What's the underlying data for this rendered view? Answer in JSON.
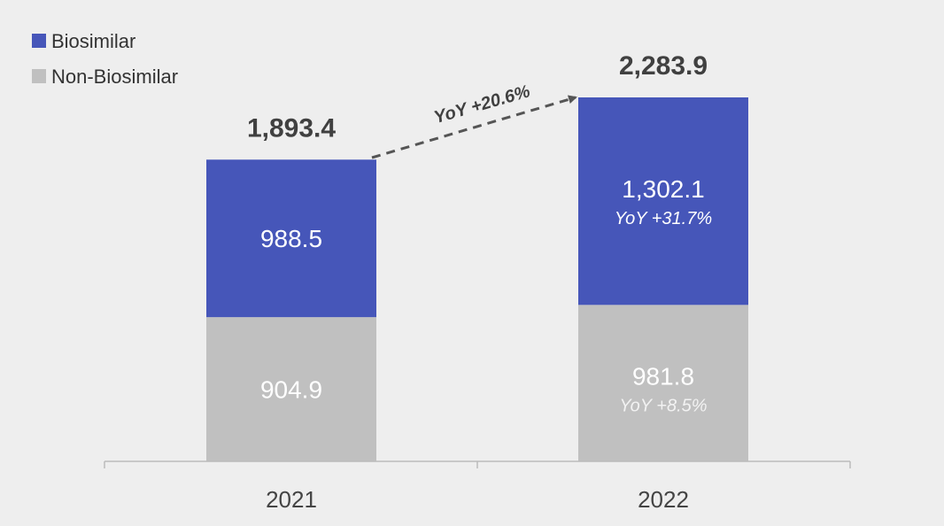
{
  "chart_data": {
    "type": "bar",
    "stacked": true,
    "categories": [
      "2021",
      "2022"
    ],
    "series": [
      {
        "name": "Non-Biosimilar",
        "values": [
          904.9,
          981.8
        ],
        "labels": [
          "904.9",
          "981.8"
        ],
        "yoy": [
          "",
          "YoY +8.5%"
        ],
        "color": "#c0c0c0"
      },
      {
        "name": "Biosimilar",
        "values": [
          988.5,
          1302.1
        ],
        "labels": [
          "988.5",
          "1,302.1"
        ],
        "yoy": [
          "",
          "YoY +31.7%"
        ],
        "color": "#4656b9"
      }
    ],
    "totals": [
      "1,893.4",
      "2,283.9"
    ],
    "growth_annotation": "YoY +20.6%",
    "legend_position": "top-left",
    "grid": false,
    "ylim": [
      0,
      2283.9
    ]
  }
}
